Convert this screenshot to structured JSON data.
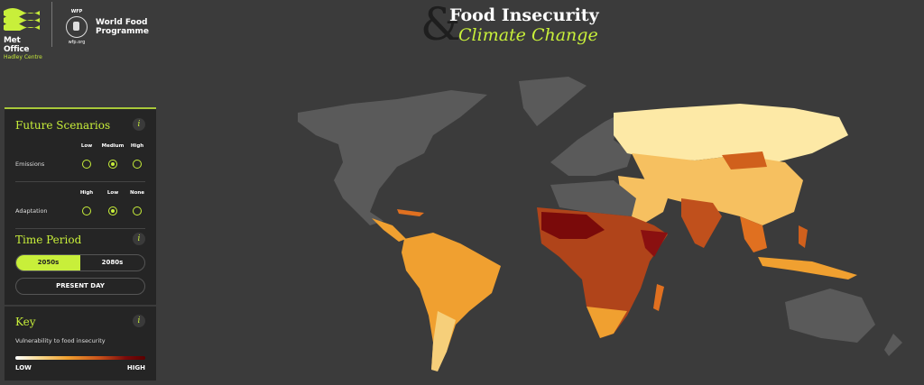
{
  "header": {
    "met_office": {
      "name": "Met Office",
      "sub": "Hadley Centre"
    },
    "wfp": {
      "abbr": "WFP",
      "name_line1": "World Food",
      "name_line2": "Programme",
      "url": "wfp.org"
    },
    "title": {
      "ampersand": "&",
      "line1": "Food Insecurity",
      "line2": "Climate Change"
    }
  },
  "panel": {
    "scenarios": {
      "title": "Future Scenarios",
      "info": "i",
      "emissions": {
        "label": "Emissions",
        "options": [
          "Low",
          "Medium",
          "High"
        ],
        "selected": "Medium"
      },
      "adaptation": {
        "label": "Adaptation",
        "options": [
          "High",
          "Low",
          "None"
        ],
        "selected": "Low"
      }
    },
    "time": {
      "title": "Time Period",
      "info": "i",
      "options": [
        "2050s",
        "2080s"
      ],
      "selected": "2050s",
      "present": "PRESENT DAY"
    },
    "key": {
      "title": "Key",
      "info": "i",
      "label": "Vulnerability to food insecurity",
      "low": "LOW",
      "high": "HIGH"
    }
  },
  "colors": {
    "accent": "#c8ef3a",
    "no_data": "#5a5a5a",
    "low": "#fde9a6",
    "mid": "#f0a030",
    "high": "#7a0a0a"
  }
}
